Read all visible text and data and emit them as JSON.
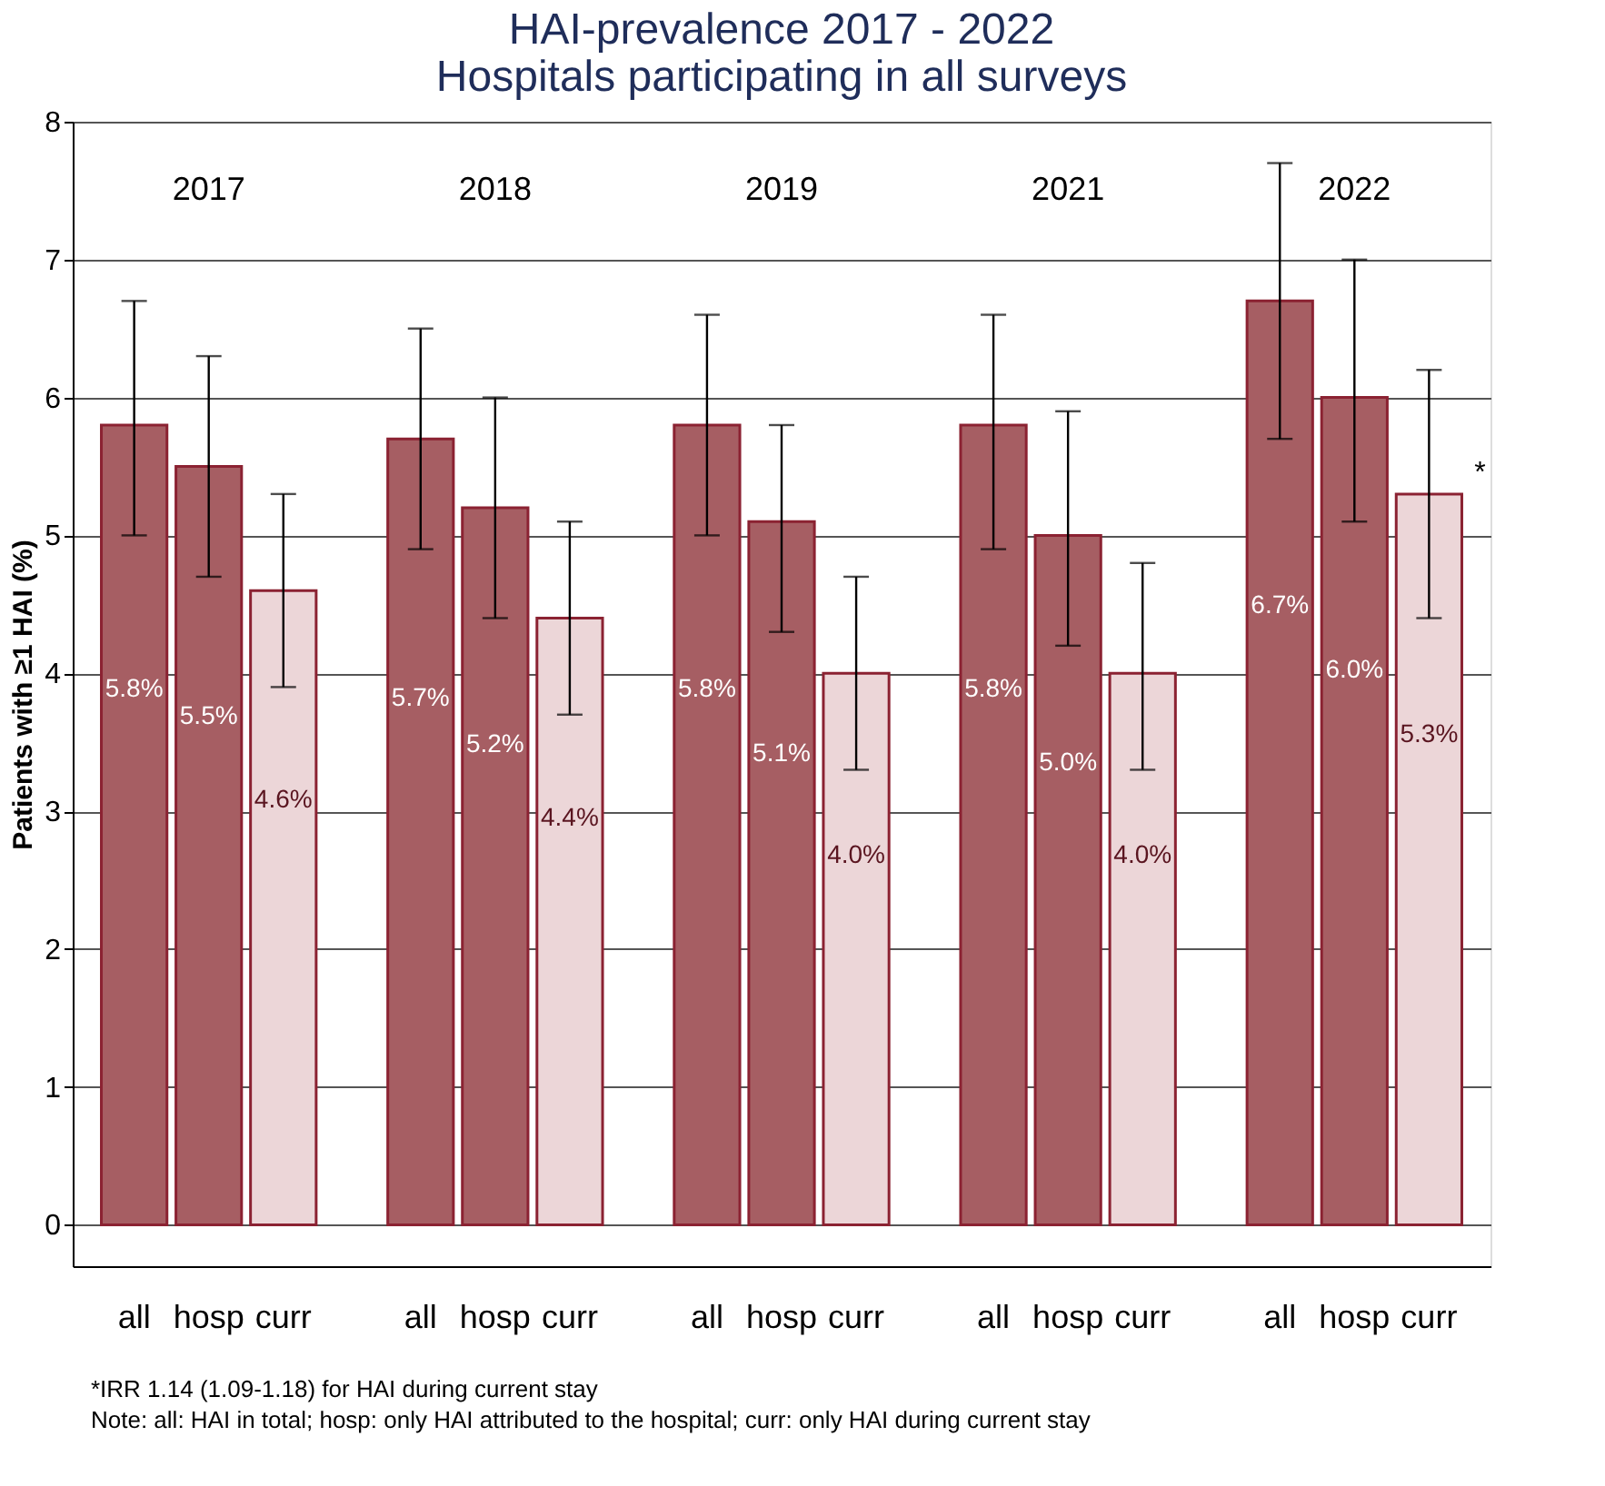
{
  "chart_data": {
    "type": "bar",
    "title": "HAI-prevalence 2017 - 2022\nHospitals participating in all surveys",
    "ylabel": "Patients with ≥1 HAI (%)",
    "categories": [
      "2017",
      "2018",
      "2019",
      "2021",
      "2022"
    ],
    "series": [
      {
        "name": "all",
        "color": "#a65e63",
        "values": [
          5.8,
          5.7,
          5.8,
          5.8,
          6.7
        ],
        "errors": [
          [
            5.0,
            6.7
          ],
          [
            4.9,
            6.5
          ],
          [
            5.0,
            6.6
          ],
          [
            4.9,
            6.6
          ],
          [
            5.7,
            7.7
          ]
        ],
        "value_labels": [
          "5.8%",
          "5.7%",
          "5.8%",
          "5.8%",
          "6.7%"
        ]
      },
      {
        "name": "hosp",
        "color": "#a65e63",
        "values": [
          5.5,
          5.2,
          5.1,
          5.0,
          6.0
        ],
        "errors": [
          [
            4.7,
            6.3
          ],
          [
            4.4,
            6.0
          ],
          [
            4.3,
            5.8
          ],
          [
            4.2,
            5.9
          ],
          [
            5.1,
            7.0
          ]
        ],
        "value_labels": [
          "5.5%",
          "5.2%",
          "5.1%",
          "5.0%",
          "6.0%"
        ]
      },
      {
        "name": "curr",
        "color": "#ecd6d8",
        "values": [
          4.6,
          4.4,
          4.0,
          4.0,
          5.3
        ],
        "errors": [
          [
            3.9,
            5.3
          ],
          [
            3.7,
            5.1
          ],
          [
            3.3,
            4.7
          ],
          [
            3.3,
            4.8
          ],
          [
            4.4,
            6.2
          ]
        ],
        "value_labels": [
          "4.6%",
          "4.4%",
          "4.0%",
          "4.0%",
          "5.3%"
        ]
      }
    ],
    "ylim": [
      -0.3,
      8
    ],
    "yticks": [
      0,
      1,
      2,
      3,
      4,
      5,
      6,
      7,
      8
    ],
    "grid": "y",
    "legend": false,
    "annotations": [
      "*",
      "*IRR 1.14 (1.09-1.18) for HAI during current stay",
      "Note: all: HAI in total; hosp: only HAI attributed to the hospital; curr: only HAI during current stay"
    ]
  }
}
